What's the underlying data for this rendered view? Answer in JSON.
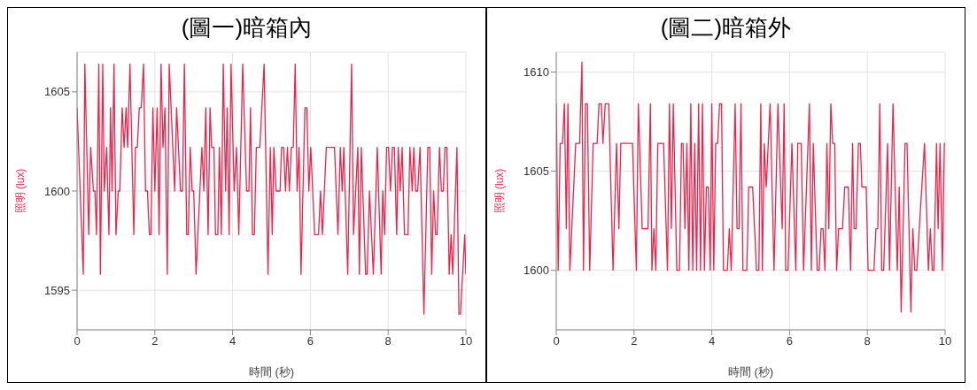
{
  "chart_data": [
    {
      "type": "line",
      "title": "(圖一)暗箱內",
      "xlabel": "時間 (秒)",
      "ylabel": "照明 (lux)",
      "xlim": [
        0,
        10
      ],
      "xticks": [
        0,
        2,
        4,
        6,
        8,
        10
      ],
      "ylim": [
        1593,
        1607
      ],
      "yticks": [
        1595,
        1600,
        1605
      ],
      "grid": true,
      "marker": "none",
      "series": [
        {
          "color": "#f0224a",
          "x": [
            0,
            0.16,
            0.2,
            0.3,
            0.35,
            0.42,
            0.46,
            0.5,
            0.56,
            0.6,
            0.66,
            0.7,
            0.76,
            0.82,
            0.86,
            0.9,
            0.95,
            1.0,
            1.06,
            1.1,
            1.16,
            1.21,
            1.26,
            1.3,
            1.36,
            1.46,
            1.5,
            1.55,
            1.6,
            1.65,
            1.71,
            1.76,
            1.81,
            1.86,
            1.9,
            1.95,
            2.0,
            2.06,
            2.11,
            2.16,
            2.21,
            2.26,
            2.32,
            2.37,
            2.51,
            2.56,
            2.66,
            2.71,
            2.76,
            2.82,
            2.86,
            2.91,
            2.96,
            3.0,
            3.06,
            3.21,
            3.26,
            3.31,
            3.37,
            3.42,
            3.46,
            3.52,
            3.56,
            3.62,
            3.66,
            3.71,
            3.76,
            3.82,
            3.86,
            3.91,
            3.96,
            4.04,
            4.1,
            4.16,
            4.26,
            4.36,
            4.42,
            4.46,
            4.51,
            4.56,
            4.61,
            4.7,
            4.81,
            4.91,
            4.97,
            5.02,
            5.06,
            5.12,
            5.22,
            5.26,
            5.31,
            5.36,
            5.41,
            5.46,
            5.51,
            5.56,
            5.61,
            5.66,
            5.71,
            5.76,
            5.86,
            5.91,
            5.96,
            6.01,
            6.11,
            6.21,
            6.26,
            6.31,
            6.41,
            6.62,
            6.71,
            6.77,
            6.82,
            6.86,
            6.96,
            7.06,
            7.11,
            7.22,
            7.26,
            7.31,
            7.42,
            7.46,
            7.52,
            7.62,
            7.72,
            7.82,
            7.86,
            7.91,
            7.96,
            8.01,
            8.06,
            8.11,
            8.16,
            8.22,
            8.26,
            8.31,
            8.36,
            8.42,
            8.51,
            8.56,
            8.62,
            8.66,
            8.71,
            8.76,
            8.82,
            8.92,
            9.02,
            9.07,
            9.12,
            9.17,
            9.22,
            9.26,
            9.32,
            9.37,
            9.42,
            9.46,
            9.51,
            9.57,
            9.62,
            9.66,
            9.77,
            9.82,
            9.86,
            9.97,
            10.0
          ],
          "values": [
            1604.2,
            1595.8,
            1606.4,
            1597.8,
            1602.2,
            1600,
            1600,
            1597.8,
            1606.4,
            1595.8,
            1606.4,
            1600,
            1602.2,
            1597.8,
            1604.2,
            1600,
            1606.4,
            1597.8,
            1600,
            1600,
            1604.2,
            1602.2,
            1604.2,
            1602.2,
            1606.4,
            1597.8,
            1602.2,
            1602.2,
            1604.2,
            1604.2,
            1606.4,
            1600,
            1600,
            1597.8,
            1597.8,
            1604.2,
            1600,
            1604.2,
            1597.8,
            1606.4,
            1602.2,
            1604.2,
            1595.8,
            1606.4,
            1600,
            1604.2,
            1600,
            1600,
            1606.4,
            1597.8,
            1597.8,
            1602.2,
            1600,
            1600,
            1595.8,
            1602.2,
            1600,
            1604.2,
            1597.8,
            1604.2,
            1602.2,
            1602.2,
            1597.8,
            1597.8,
            1602.2,
            1597.8,
            1606.4,
            1600,
            1604.2,
            1597.8,
            1606.4,
            1600,
            1602.2,
            1597.8,
            1606.4,
            1600,
            1600,
            1604.2,
            1597.8,
            1597.8,
            1602.2,
            1602.2,
            1606.4,
            1595.8,
            1602.2,
            1597.8,
            1602.2,
            1600,
            1600,
            1602.2,
            1602.2,
            1600,
            1602.2,
            1600,
            1602.2,
            1602.2,
            1606.4,
            1600,
            1602.2,
            1595.8,
            1604.2,
            1604.2,
            1600,
            1602.2,
            1597.8,
            1597.8,
            1600,
            1597.8,
            1602.2,
            1602.2,
            1597.8,
            1602.2,
            1600,
            1602.2,
            1595.8,
            1606.4,
            1597.8,
            1602.2,
            1595.8,
            1602.2,
            1595.8,
            1595.8,
            1600,
            1595.8,
            1602.2,
            1595.8,
            1600,
            1597.8,
            1602.2,
            1602.2,
            1600,
            1602.2,
            1602.2,
            1597.8,
            1602.2,
            1600,
            1602.2,
            1597.8,
            1597.8,
            1602.2,
            1600,
            1602.2,
            1600,
            1600,
            1602.2,
            1593.8,
            1602.2,
            1602.2,
            1595.8,
            1600,
            1597.8,
            1597.8,
            1602.2,
            1600,
            1600,
            1602.2,
            1602.2,
            1595.8,
            1597.8,
            1595.8,
            1602.2,
            1593.8,
            1593.8,
            1597.8,
            1595.8
          ]
        }
      ]
    },
    {
      "type": "line",
      "title": "(圖二)暗箱外",
      "xlabel": "時間 (秒)",
      "ylabel": "照明 (lux)",
      "xlim": [
        0,
        10
      ],
      "xticks": [
        0,
        2,
        4,
        6,
        8,
        10
      ],
      "ylim": [
        1597,
        1611
      ],
      "yticks": [
        1600,
        1605,
        1610
      ],
      "grid": true,
      "marker": "none",
      "series": [
        {
          "color": "#f0224a",
          "x": [
            0,
            0.05,
            0.1,
            0.16,
            0.21,
            0.26,
            0.3,
            0.35,
            0.5,
            0.6,
            0.66,
            0.7,
            0.75,
            0.8,
            0.86,
            0.95,
            1.05,
            1.1,
            1.16,
            1.2,
            1.26,
            1.35,
            1.46,
            1.55,
            1.61,
            1.66,
            1.96,
            2.06,
            2.11,
            2.21,
            2.36,
            2.42,
            2.46,
            2.51,
            2.56,
            2.61,
            2.76,
            2.86,
            2.91,
            2.96,
            3.01,
            3.1,
            3.17,
            3.22,
            3.26,
            3.31,
            3.36,
            3.41,
            3.46,
            3.51,
            3.56,
            3.61,
            3.66,
            3.71,
            3.76,
            3.81,
            3.86,
            3.91,
            3.96,
            4.0,
            4.05,
            4.1,
            4.15,
            4.2,
            4.25,
            4.3,
            4.4,
            4.45,
            4.5,
            4.6,
            4.65,
            4.7,
            4.75,
            4.8,
            4.9,
            4.95,
            5.05,
            5.15,
            5.21,
            5.26,
            5.3,
            5.35,
            5.4,
            5.5,
            5.6,
            5.7,
            5.81,
            5.86,
            5.9,
            5.96,
            6.06,
            6.16,
            6.21,
            6.3,
            6.36,
            6.51,
            6.56,
            6.61,
            6.71,
            6.76,
            6.81,
            6.86,
            6.91,
            6.96,
            7.01,
            7.06,
            7.11,
            7.16,
            7.21,
            7.26,
            7.36,
            7.42,
            7.51,
            7.57,
            7.62,
            7.66,
            7.71,
            7.77,
            7.82,
            7.86,
            7.97,
            8.02,
            8.17,
            8.22,
            8.27,
            8.32,
            8.37,
            8.42,
            8.52,
            8.57,
            8.66,
            8.77,
            8.82,
            8.87,
            8.97,
            9.02,
            9.12,
            9.17,
            9.22,
            9.27,
            9.47,
            9.57,
            9.62,
            9.67,
            9.71,
            9.78,
            9.82,
            9.87,
            9.93,
            9.98,
            10.0
          ],
          "values": [
            1608.4,
            1600,
            1606.4,
            1606.4,
            1608.4,
            1602.1,
            1608.4,
            1600,
            1606.4,
            1606.4,
            1610.5,
            1600,
            1608.4,
            1608.4,
            1600,
            1606.4,
            1606.4,
            1608.4,
            1608.4,
            1606.4,
            1608.4,
            1608.4,
            1600,
            1606.4,
            1602.1,
            1606.4,
            1606.4,
            1600,
            1608.4,
            1602.1,
            1602.1,
            1608.4,
            1600,
            1602.1,
            1600,
            1606.4,
            1606.4,
            1600,
            1608.4,
            1602.1,
            1608.4,
            1600,
            1600,
            1606.4,
            1606.4,
            1602.1,
            1606.4,
            1600,
            1608.4,
            1600,
            1606.4,
            1600,
            1608.4,
            1600,
            1608.4,
            1600,
            1604.2,
            1604.2,
            1600,
            1608.4,
            1600,
            1606.4,
            1606.4,
            1608.4,
            1608.4,
            1600,
            1600,
            1602.1,
            1600,
            1608.4,
            1602.1,
            1602.1,
            1608.4,
            1600,
            1600,
            1604.2,
            1604.2,
            1600,
            1600,
            1608.4,
            1600,
            1606.4,
            1604.2,
            1608.4,
            1600,
            1608.4,
            1602.1,
            1608.4,
            1600,
            1600,
            1606.4,
            1600,
            1606.4,
            1606.4,
            1600,
            1608.4,
            1600,
            1606.4,
            1600,
            1600,
            1602.1,
            1602.1,
            1600,
            1606.4,
            1602.1,
            1608.4,
            1606.4,
            1606.4,
            1600,
            1602.1,
            1602.1,
            1604.2,
            1604.2,
            1600,
            1606.4,
            1602.1,
            1602.1,
            1606.4,
            1606.4,
            1604.2,
            1604.2,
            1600,
            1600,
            1602.1,
            1602.1,
            1608.4,
            1600,
            1600,
            1606.4,
            1600,
            1608.4,
            1600,
            1604.2,
            1597.9,
            1606.4,
            1606.4,
            1597.9,
            1602.1,
            1600,
            1600,
            1606.4,
            1600,
            1602.1,
            1600,
            1600,
            1606.4,
            1602.1,
            1606.4,
            1600,
            1606.4,
            1606.4
          ]
        }
      ]
    }
  ]
}
